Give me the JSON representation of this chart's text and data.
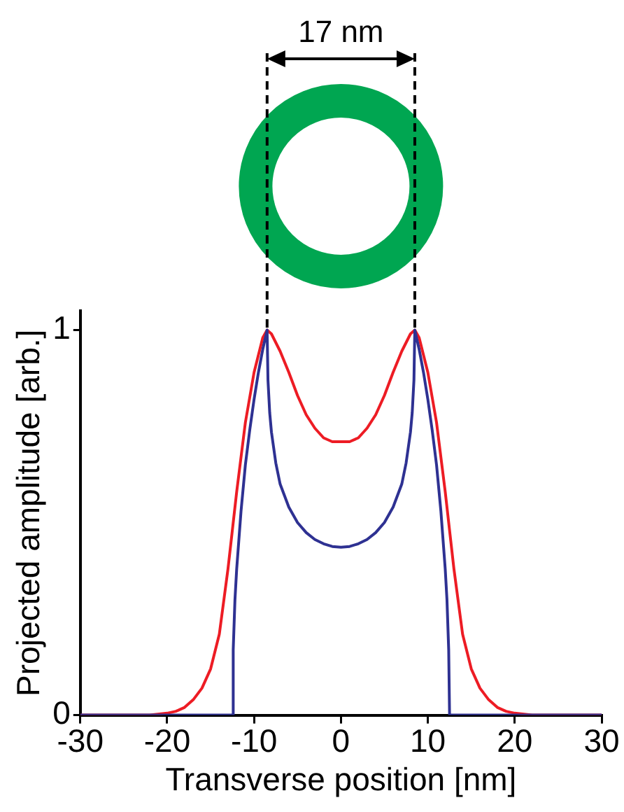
{
  "chart_data": {
    "type": "line",
    "xlabel": "Transverse position [nm]",
    "ylabel": "Projected amplitude [arb.]",
    "annotations": [
      "17 nm"
    ],
    "xlim": [
      -30,
      30
    ],
    "xticks": [
      -30,
      -20,
      -10,
      0,
      10,
      20,
      30
    ],
    "ylim": [
      0,
      1.05
    ],
    "yticks": [
      0,
      1
    ],
    "grid": false,
    "legend": false,
    "marker": "none",
    "series": [
      {
        "color": "#2e3192",
        "x": [
          -30,
          -12.5,
          -12.4,
          -12.2,
          -12,
          -11.5,
          -11,
          -10.5,
          -10,
          -9.5,
          -9,
          -8.5,
          -8.4,
          -8.2,
          -8,
          -7.5,
          -7,
          -6,
          -5,
          -4,
          -3,
          -2,
          -1,
          0,
          1,
          2,
          3,
          4,
          5,
          6,
          7,
          7.5,
          8,
          8.2,
          8.4,
          8.5,
          9,
          9.5,
          10,
          10.5,
          11,
          11.5,
          12,
          12.2,
          12.4,
          12.5,
          30
        ],
        "values": [
          0,
          0,
          0.17,
          0.3,
          0.38,
          0.53,
          0.65,
          0.74,
          0.82,
          0.89,
          0.95,
          1,
          0.87,
          0.785,
          0.735,
          0.655,
          0.6,
          0.54,
          0.5,
          0.474,
          0.456,
          0.445,
          0.438,
          0.436,
          0.438,
          0.445,
          0.456,
          0.474,
          0.5,
          0.54,
          0.6,
          0.655,
          0.735,
          0.785,
          0.87,
          1,
          0.95,
          0.89,
          0.82,
          0.74,
          0.65,
          0.53,
          0.38,
          0.3,
          0.17,
          0,
          0
        ]
      },
      {
        "color": "#ed1c24",
        "x": [
          -30,
          -22,
          -20,
          -19,
          -18,
          -17,
          -16,
          -15,
          -14,
          -13,
          -12,
          -11,
          -10,
          -9,
          -8.5,
          -8,
          -7,
          -6,
          -5,
          -4,
          -3,
          -2,
          -1,
          0,
          1,
          2,
          3,
          4,
          5,
          6,
          7,
          8,
          8.5,
          9,
          10,
          11,
          12,
          13,
          14,
          15,
          16,
          17,
          18,
          19,
          20,
          22,
          30
        ],
        "values": [
          0,
          0,
          0.005,
          0.01,
          0.02,
          0.04,
          0.07,
          0.12,
          0.21,
          0.38,
          0.58,
          0.76,
          0.89,
          0.98,
          1,
          0.99,
          0.945,
          0.89,
          0.83,
          0.78,
          0.745,
          0.72,
          0.71,
          0.71,
          0.71,
          0.72,
          0.745,
          0.78,
          0.83,
          0.89,
          0.945,
          0.99,
          1,
          0.98,
          0.89,
          0.76,
          0.58,
          0.38,
          0.21,
          0.12,
          0.07,
          0.04,
          0.02,
          0.01,
          0.005,
          0,
          0
        ]
      }
    ]
  }
}
